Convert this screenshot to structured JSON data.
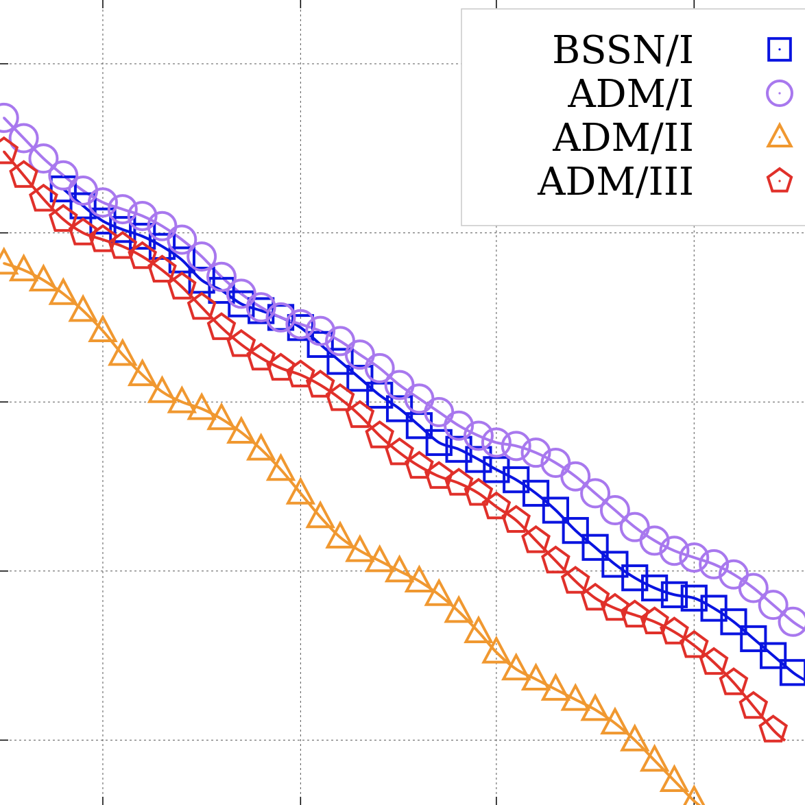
{
  "chart_data": {
    "type": "line",
    "title": "",
    "xlabel": "",
    "ylabel": "",
    "grid": true,
    "legend_placement": "top-right",
    "xlim": [
      0,
      4.07
    ],
    "ylim": [
      -4.36,
      0.37
    ],
    "xgrid": [
      0.52,
      1.52,
      2.51,
      3.51
    ],
    "ygrid": [
      0,
      -1,
      -2,
      -3,
      -4
    ],
    "series": [
      {
        "name": "BSSN/I",
        "color": "#0a14e0",
        "marker": "square",
        "x": [
          0.32,
          0.42,
          0.52,
          0.62,
          0.72,
          0.82,
          0.92,
          1.02,
          1.12,
          1.22,
          1.32,
          1.42,
          1.52,
          1.62,
          1.72,
          1.82,
          1.92,
          2.02,
          2.12,
          2.22,
          2.32,
          2.42,
          2.51,
          2.61,
          2.71,
          2.81,
          2.91,
          3.01,
          3.11,
          3.21,
          3.31,
          3.41,
          3.51,
          3.61,
          3.71,
          3.81,
          3.91,
          4.01
        ],
        "y": [
          -0.74,
          -0.84,
          -0.93,
          -0.98,
          -1.02,
          -1.08,
          -1.16,
          -1.28,
          -1.34,
          -1.42,
          -1.46,
          -1.5,
          -1.56,
          -1.66,
          -1.76,
          -1.86,
          -1.96,
          -2.04,
          -2.14,
          -2.24,
          -2.28,
          -2.34,
          -2.4,
          -2.46,
          -2.54,
          -2.64,
          -2.76,
          -2.86,
          -2.96,
          -3.04,
          -3.1,
          -3.14,
          -3.16,
          -3.22,
          -3.3,
          -3.4,
          -3.5,
          -3.6
        ]
      },
      {
        "name": "ADM/I",
        "color": "#a878ee",
        "marker": "circle",
        "x": [
          0.02,
          0.12,
          0.22,
          0.32,
          0.42,
          0.52,
          0.62,
          0.72,
          0.82,
          0.92,
          1.02,
          1.12,
          1.22,
          1.32,
          1.42,
          1.52,
          1.62,
          1.72,
          1.82,
          1.92,
          2.02,
          2.12,
          2.22,
          2.32,
          2.42,
          2.51,
          2.61,
          2.71,
          2.81,
          2.91,
          3.01,
          3.11,
          3.21,
          3.31,
          3.41,
          3.51,
          3.61,
          3.71,
          3.81,
          3.91,
          4.01
        ],
        "y": [
          -0.32,
          -0.44,
          -0.56,
          -0.66,
          -0.75,
          -0.82,
          -0.86,
          -0.9,
          -0.96,
          -1.04,
          -1.14,
          -1.26,
          -1.36,
          -1.44,
          -1.5,
          -1.54,
          -1.58,
          -1.64,
          -1.72,
          -1.8,
          -1.9,
          -1.98,
          -2.06,
          -2.14,
          -2.2,
          -2.24,
          -2.26,
          -2.3,
          -2.36,
          -2.44,
          -2.54,
          -2.64,
          -2.74,
          -2.82,
          -2.88,
          -2.92,
          -2.96,
          -3.02,
          -3.1,
          -3.2,
          -3.3
        ]
      },
      {
        "name": "ADM/II",
        "color": "#f09830",
        "marker": "triangle",
        "x": [
          0.02,
          0.12,
          0.22,
          0.32,
          0.42,
          0.52,
          0.62,
          0.72,
          0.82,
          0.92,
          1.02,
          1.12,
          1.22,
          1.32,
          1.42,
          1.52,
          1.62,
          1.72,
          1.82,
          1.92,
          2.02,
          2.12,
          2.22,
          2.32,
          2.42,
          2.51,
          2.61,
          2.71,
          2.81,
          2.91,
          3.01,
          3.11,
          3.21,
          3.31,
          3.41,
          3.51
        ],
        "y": [
          -1.18,
          -1.22,
          -1.28,
          -1.36,
          -1.46,
          -1.58,
          -1.72,
          -1.84,
          -1.94,
          -2.0,
          -2.04,
          -2.1,
          -2.18,
          -2.28,
          -2.4,
          -2.54,
          -2.68,
          -2.8,
          -2.88,
          -2.94,
          -3.0,
          -3.06,
          -3.14,
          -3.24,
          -3.36,
          -3.48,
          -3.58,
          -3.64,
          -3.7,
          -3.76,
          -3.82,
          -3.9,
          -4.0,
          -4.12,
          -4.24,
          -4.36
        ]
      },
      {
        "name": "ADM/III",
        "color": "#e0302a",
        "marker": "pentagon",
        "x": [
          0.02,
          0.12,
          0.22,
          0.32,
          0.42,
          0.52,
          0.62,
          0.72,
          0.82,
          0.92,
          1.02,
          1.12,
          1.22,
          1.32,
          1.42,
          1.52,
          1.62,
          1.72,
          1.82,
          1.92,
          2.02,
          2.12,
          2.22,
          2.32,
          2.42,
          2.51,
          2.61,
          2.71,
          2.81,
          2.91,
          3.01,
          3.11,
          3.21,
          3.31,
          3.41,
          3.51,
          3.61,
          3.71,
          3.81,
          3.91
        ],
        "y": [
          -0.52,
          -0.66,
          -0.8,
          -0.92,
          -1.0,
          -1.04,
          -1.08,
          -1.14,
          -1.22,
          -1.32,
          -1.44,
          -1.56,
          -1.66,
          -1.74,
          -1.8,
          -1.84,
          -1.9,
          -1.98,
          -2.08,
          -2.2,
          -2.3,
          -2.38,
          -2.44,
          -2.48,
          -2.54,
          -2.62,
          -2.7,
          -2.82,
          -2.94,
          -3.06,
          -3.16,
          -3.22,
          -3.26,
          -3.3,
          -3.36,
          -3.44,
          -3.54,
          -3.66,
          -3.8,
          -3.94
        ]
      }
    ]
  }
}
